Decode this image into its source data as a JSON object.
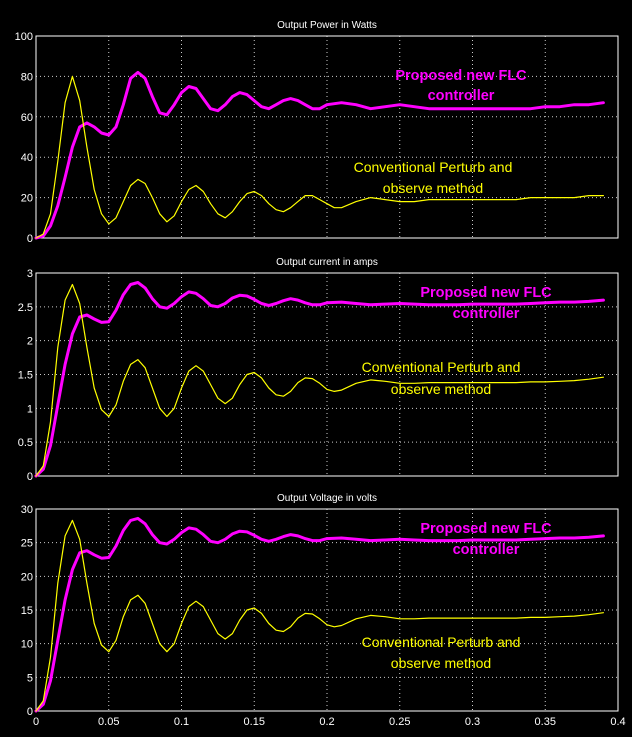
{
  "chart_data": [
    {
      "type": "line",
      "title": "Output Power in Watts",
      "xlim": [
        0,
        0.4
      ],
      "ylim": [
        0,
        100
      ],
      "yticks": [
        0,
        20,
        40,
        60,
        80,
        100
      ],
      "xticks": [],
      "grid": true,
      "series": [
        {
          "name": "Proposed new FLC controller",
          "color": "#ff00ff",
          "x": [
            0,
            0.005,
            0.01,
            0.015,
            0.02,
            0.025,
            0.03,
            0.035,
            0.04,
            0.045,
            0.05,
            0.055,
            0.06,
            0.065,
            0.07,
            0.075,
            0.08,
            0.085,
            0.09,
            0.095,
            0.1,
            0.105,
            0.11,
            0.115,
            0.12,
            0.125,
            0.13,
            0.135,
            0.14,
            0.145,
            0.15,
            0.155,
            0.16,
            0.165,
            0.17,
            0.175,
            0.18,
            0.185,
            0.19,
            0.195,
            0.2,
            0.21,
            0.22,
            0.23,
            0.24,
            0.25,
            0.26,
            0.27,
            0.28,
            0.29,
            0.3,
            0.31,
            0.32,
            0.33,
            0.34,
            0.35,
            0.36,
            0.37,
            0.38,
            0.39
          ],
          "y": [
            0,
            1,
            6,
            16,
            30,
            45,
            55,
            57,
            55,
            52,
            51,
            55,
            66,
            79,
            82,
            79,
            70,
            62,
            61,
            66,
            72,
            75,
            74,
            69,
            64,
            63,
            66,
            70,
            72,
            71,
            68,
            65,
            64,
            66,
            68,
            69,
            68,
            66,
            64,
            64,
            66,
            67,
            66,
            64,
            65,
            66,
            65,
            64,
            64,
            64,
            64,
            64,
            64,
            64,
            64,
            65,
            65,
            66,
            66,
            67
          ]
        },
        {
          "name": "Conventional Perturb and observe method",
          "color": "#ffff00",
          "x": [
            0,
            0.005,
            0.01,
            0.015,
            0.02,
            0.025,
            0.03,
            0.035,
            0.04,
            0.045,
            0.05,
            0.055,
            0.06,
            0.065,
            0.07,
            0.075,
            0.08,
            0.085,
            0.09,
            0.095,
            0.1,
            0.105,
            0.11,
            0.115,
            0.12,
            0.125,
            0.13,
            0.135,
            0.14,
            0.145,
            0.15,
            0.155,
            0.16,
            0.165,
            0.17,
            0.175,
            0.18,
            0.185,
            0.19,
            0.195,
            0.2,
            0.205,
            0.21,
            0.22,
            0.23,
            0.24,
            0.25,
            0.26,
            0.27,
            0.28,
            0.29,
            0.3,
            0.31,
            0.32,
            0.33,
            0.34,
            0.35,
            0.36,
            0.37,
            0.38,
            0.39
          ],
          "y": [
            0,
            2,
            12,
            38,
            67,
            80,
            68,
            45,
            24,
            12,
            7,
            10,
            18,
            26,
            29,
            27,
            20,
            12,
            8,
            11,
            18,
            24,
            26,
            23,
            17,
            12,
            10,
            13,
            18,
            22,
            23,
            21,
            17,
            14,
            13,
            15,
            18,
            21,
            21,
            19,
            17,
            15,
            15,
            18,
            20,
            19,
            18,
            18,
            19,
            19,
            19,
            19,
            19,
            19,
            19,
            20,
            20,
            20,
            20,
            21,
            21
          ]
        }
      ],
      "annotations": {
        "flc_line1": "Proposed new FLC",
        "flc_line2": "controller",
        "po_line1": "Conventional Perturb and",
        "po_line2": "observe method"
      }
    },
    {
      "type": "line",
      "title": "Output current in amps",
      "xlim": [
        0,
        0.4
      ],
      "ylim": [
        0,
        3
      ],
      "yticks": [
        0,
        0.5,
        1,
        1.5,
        2,
        2.5,
        3
      ],
      "xticks": [],
      "grid": true,
      "series": [
        {
          "name": "Proposed new FLC controller",
          "color": "#ff00ff",
          "x": [
            0,
            0.005,
            0.01,
            0.015,
            0.02,
            0.025,
            0.03,
            0.035,
            0.04,
            0.045,
            0.05,
            0.055,
            0.06,
            0.065,
            0.07,
            0.075,
            0.08,
            0.085,
            0.09,
            0.095,
            0.1,
            0.105,
            0.11,
            0.115,
            0.12,
            0.125,
            0.13,
            0.135,
            0.14,
            0.145,
            0.15,
            0.155,
            0.16,
            0.165,
            0.17,
            0.175,
            0.18,
            0.185,
            0.19,
            0.195,
            0.2,
            0.21,
            0.22,
            0.23,
            0.24,
            0.25,
            0.26,
            0.27,
            0.28,
            0.29,
            0.3,
            0.31,
            0.32,
            0.33,
            0.34,
            0.35,
            0.36,
            0.37,
            0.38,
            0.39
          ],
          "y": [
            0,
            0.1,
            0.45,
            1.05,
            1.65,
            2.1,
            2.35,
            2.38,
            2.32,
            2.27,
            2.28,
            2.45,
            2.68,
            2.83,
            2.86,
            2.78,
            2.62,
            2.5,
            2.48,
            2.55,
            2.65,
            2.72,
            2.7,
            2.62,
            2.52,
            2.5,
            2.55,
            2.63,
            2.67,
            2.66,
            2.61,
            2.55,
            2.52,
            2.55,
            2.59,
            2.62,
            2.6,
            2.56,
            2.53,
            2.53,
            2.56,
            2.57,
            2.55,
            2.53,
            2.54,
            2.55,
            2.54,
            2.53,
            2.53,
            2.53,
            2.54,
            2.54,
            2.54,
            2.54,
            2.55,
            2.56,
            2.57,
            2.57,
            2.58,
            2.6
          ]
        },
        {
          "name": "Conventional Perturb and observe method",
          "color": "#ffff00",
          "x": [
            0,
            0.005,
            0.01,
            0.015,
            0.02,
            0.025,
            0.03,
            0.035,
            0.04,
            0.045,
            0.05,
            0.055,
            0.06,
            0.065,
            0.07,
            0.075,
            0.08,
            0.085,
            0.09,
            0.095,
            0.1,
            0.105,
            0.11,
            0.115,
            0.12,
            0.125,
            0.13,
            0.135,
            0.14,
            0.145,
            0.15,
            0.155,
            0.16,
            0.165,
            0.17,
            0.175,
            0.18,
            0.185,
            0.19,
            0.195,
            0.2,
            0.205,
            0.21,
            0.22,
            0.23,
            0.24,
            0.25,
            0.26,
            0.27,
            0.28,
            0.29,
            0.3,
            0.31,
            0.32,
            0.33,
            0.34,
            0.35,
            0.36,
            0.37,
            0.38,
            0.39
          ],
          "y": [
            0,
            0.15,
            0.8,
            1.9,
            2.6,
            2.83,
            2.55,
            1.9,
            1.3,
            0.98,
            0.88,
            1.05,
            1.4,
            1.65,
            1.72,
            1.6,
            1.3,
            1.0,
            0.88,
            1.0,
            1.3,
            1.55,
            1.63,
            1.55,
            1.35,
            1.15,
            1.07,
            1.15,
            1.35,
            1.5,
            1.53,
            1.45,
            1.3,
            1.2,
            1.18,
            1.25,
            1.38,
            1.45,
            1.44,
            1.37,
            1.28,
            1.25,
            1.27,
            1.37,
            1.42,
            1.4,
            1.37,
            1.37,
            1.38,
            1.38,
            1.38,
            1.38,
            1.38,
            1.38,
            1.38,
            1.39,
            1.39,
            1.4,
            1.41,
            1.43,
            1.46
          ]
        }
      ],
      "annotations": {
        "flc_line1": "Proposed new FLC",
        "flc_line2": "controller",
        "po_line1": "Conventional Perturb and",
        "po_line2": "observe method"
      }
    },
    {
      "type": "line",
      "title": "Output Voltage in volts",
      "xlim": [
        0,
        0.4
      ],
      "ylim": [
        0,
        30
      ],
      "yticks": [
        0,
        5,
        10,
        15,
        20,
        25,
        30
      ],
      "xticks": [
        0,
        0.05,
        0.1,
        0.15,
        0.2,
        0.25,
        0.3,
        0.35,
        0.4
      ],
      "grid": true,
      "series": [
        {
          "name": "Proposed new FLC controller",
          "color": "#ff00ff",
          "x": [
            0,
            0.005,
            0.01,
            0.015,
            0.02,
            0.025,
            0.03,
            0.035,
            0.04,
            0.045,
            0.05,
            0.055,
            0.06,
            0.065,
            0.07,
            0.075,
            0.08,
            0.085,
            0.09,
            0.095,
            0.1,
            0.105,
            0.11,
            0.115,
            0.12,
            0.125,
            0.13,
            0.135,
            0.14,
            0.145,
            0.15,
            0.155,
            0.16,
            0.165,
            0.17,
            0.175,
            0.18,
            0.185,
            0.19,
            0.195,
            0.2,
            0.21,
            0.22,
            0.23,
            0.24,
            0.25,
            0.26,
            0.27,
            0.28,
            0.29,
            0.3,
            0.31,
            0.32,
            0.33,
            0.34,
            0.35,
            0.36,
            0.37,
            0.38,
            0.39
          ],
          "y": [
            0,
            1,
            4.5,
            10.5,
            16.5,
            21,
            23.5,
            23.8,
            23.2,
            22.7,
            22.8,
            24.5,
            26.8,
            28.3,
            28.6,
            27.8,
            26.2,
            25,
            24.8,
            25.5,
            26.5,
            27.2,
            27,
            26.2,
            25.2,
            25,
            25.5,
            26.3,
            26.7,
            26.6,
            26.1,
            25.5,
            25.2,
            25.5,
            25.9,
            26.2,
            26,
            25.6,
            25.3,
            25.3,
            25.6,
            25.7,
            25.5,
            25.3,
            25.4,
            25.5,
            25.4,
            25.3,
            25.3,
            25.3,
            25.4,
            25.4,
            25.4,
            25.4,
            25.5,
            25.6,
            25.7,
            25.7,
            25.8,
            26
          ]
        },
        {
          "name": "Conventional Perturb and observe method",
          "color": "#ffff00",
          "x": [
            0,
            0.005,
            0.01,
            0.015,
            0.02,
            0.025,
            0.03,
            0.035,
            0.04,
            0.045,
            0.05,
            0.055,
            0.06,
            0.065,
            0.07,
            0.075,
            0.08,
            0.085,
            0.09,
            0.095,
            0.1,
            0.105,
            0.11,
            0.115,
            0.12,
            0.125,
            0.13,
            0.135,
            0.14,
            0.145,
            0.15,
            0.155,
            0.16,
            0.165,
            0.17,
            0.175,
            0.18,
            0.185,
            0.19,
            0.195,
            0.2,
            0.205,
            0.21,
            0.22,
            0.23,
            0.24,
            0.25,
            0.26,
            0.27,
            0.28,
            0.29,
            0.3,
            0.31,
            0.32,
            0.33,
            0.34,
            0.35,
            0.36,
            0.37,
            0.38,
            0.39
          ],
          "y": [
            0,
            1.5,
            8,
            19,
            26,
            28.3,
            25.5,
            19,
            13,
            9.8,
            8.8,
            10.5,
            14,
            16.5,
            17.2,
            16,
            13,
            10,
            8.8,
            10,
            13,
            15.5,
            16.3,
            15.5,
            13.5,
            11.5,
            10.7,
            11.5,
            13.5,
            15,
            15.3,
            14.5,
            13,
            12,
            11.8,
            12.5,
            13.8,
            14.5,
            14.4,
            13.7,
            12.8,
            12.5,
            12.7,
            13.7,
            14.2,
            14,
            13.7,
            13.7,
            13.8,
            13.8,
            13.8,
            13.8,
            13.8,
            13.8,
            13.8,
            13.9,
            13.9,
            14,
            14.1,
            14.3,
            14.6
          ]
        }
      ],
      "annotations": {
        "flc_line1": "Proposed new FLC",
        "flc_line2": "controller",
        "po_line1": "Conventional Perturb and",
        "po_line2": "observe method"
      }
    }
  ]
}
